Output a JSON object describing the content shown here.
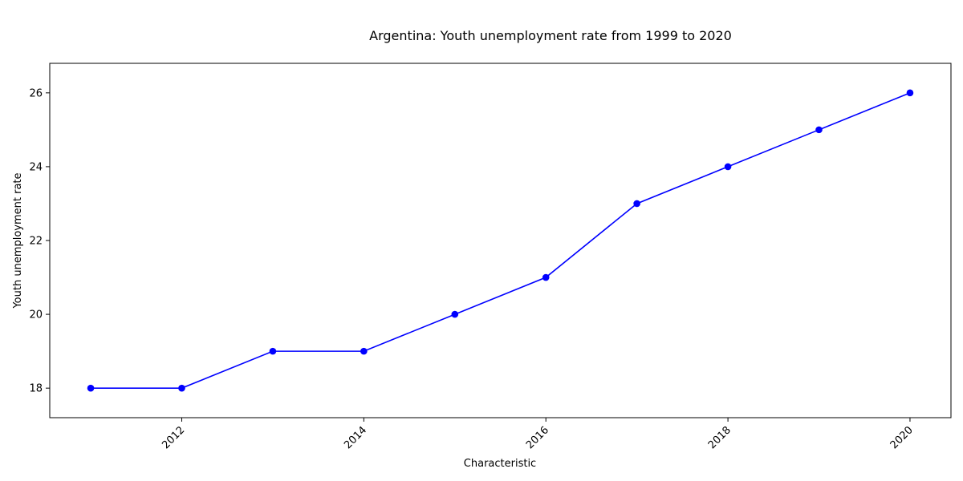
{
  "chart_data": {
    "type": "line",
    "title": "Argentina: Youth unemployment rate from 1999 to 2020",
    "xlabel": "Characteristic",
    "ylabel": "Youth unemployment rate",
    "x": [
      2011,
      2012,
      2013,
      2014,
      2015,
      2016,
      2017,
      2018,
      2019,
      2020
    ],
    "series": [
      {
        "values": [
          18,
          18,
          19,
          19,
          20,
          21,
          23,
          24,
          25,
          26
        ],
        "color": "#0000ff"
      }
    ],
    "xlim": [
      2010.55,
      2020.45
    ],
    "ylim": [
      17.2,
      26.8
    ],
    "xticks": [
      2012,
      2014,
      2016,
      2018,
      2020
    ],
    "yticks": [
      18,
      20,
      22,
      24,
      26
    ],
    "grid": false,
    "legend": "none"
  }
}
